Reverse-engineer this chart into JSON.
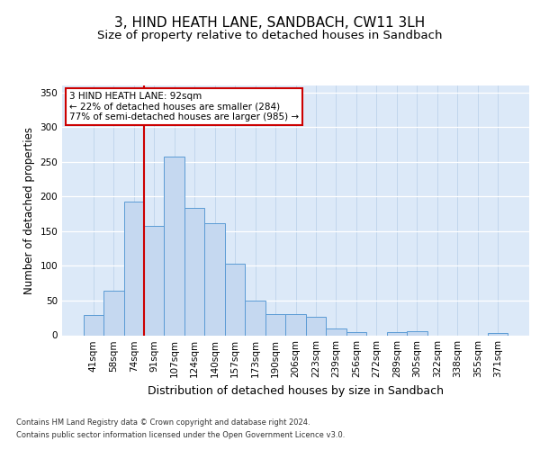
{
  "title": "3, HIND HEATH LANE, SANDBACH, CW11 3LH",
  "subtitle": "Size of property relative to detached houses in Sandbach",
  "xlabel": "Distribution of detached houses by size in Sandbach",
  "ylabel": "Number of detached properties",
  "categories": [
    "41sqm",
    "58sqm",
    "74sqm",
    "91sqm",
    "107sqm",
    "124sqm",
    "140sqm",
    "157sqm",
    "173sqm",
    "190sqm",
    "206sqm",
    "223sqm",
    "239sqm",
    "256sqm",
    "272sqm",
    "289sqm",
    "305sqm",
    "322sqm",
    "338sqm",
    "355sqm",
    "371sqm"
  ],
  "values": [
    29,
    64,
    193,
    158,
    258,
    184,
    161,
    103,
    50,
    31,
    30,
    27,
    10,
    5,
    0,
    5,
    6,
    0,
    0,
    0,
    3
  ],
  "bar_color": "#c5d8f0",
  "bar_edge_color": "#5b9bd5",
  "vline_index": 3,
  "vline_color": "#cc0000",
  "annotation_text": "3 HIND HEATH LANE: 92sqm\n← 22% of detached houses are smaller (284)\n77% of semi-detached houses are larger (985) →",
  "annotation_box_color": "#ffffff",
  "annotation_box_edge": "#cc0000",
  "ylim": [
    0,
    360
  ],
  "yticks": [
    0,
    50,
    100,
    150,
    200,
    250,
    300,
    350
  ],
  "background_color": "#dce9f8",
  "footer_line1": "Contains HM Land Registry data © Crown copyright and database right 2024.",
  "footer_line2": "Contains public sector information licensed under the Open Government Licence v3.0.",
  "title_fontsize": 11,
  "subtitle_fontsize": 9.5,
  "tick_fontsize": 7.5,
  "ylabel_fontsize": 8.5,
  "xlabel_fontsize": 9,
  "annotation_fontsize": 7.5
}
